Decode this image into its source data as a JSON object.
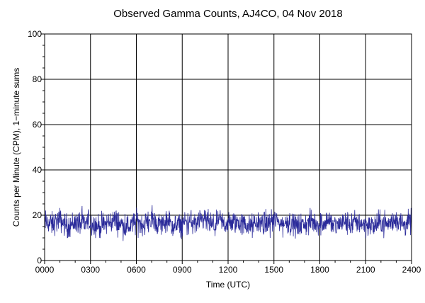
{
  "chart_data": {
    "type": "line",
    "title": "Observed Gamma Counts, AJ4CO, 04 Nov 2018",
    "xlabel": "Time (UTC)",
    "ylabel": "Counts per Minute (CPM), 1−minute sums",
    "x_tick_labels": [
      "0000",
      "0300",
      "0600",
      "0900",
      "1200",
      "1500",
      "1800",
      "2100",
      "2400"
    ],
    "x_ticks_hours": [
      0,
      3,
      6,
      9,
      12,
      15,
      18,
      21,
      24
    ],
    "y_tick_labels": [
      "0",
      "20",
      "40",
      "60",
      "80",
      "100"
    ],
    "y_ticks": [
      0,
      20,
      40,
      60,
      80,
      100
    ],
    "xlim_hours": [
      0,
      24
    ],
    "ylim": [
      0,
      100
    ],
    "grid": true,
    "legend": "none",
    "series": [
      {
        "sampling": "1-minute sums",
        "color": "#2b2b9a",
        "x_hours": [
          0,
          0.5,
          1,
          1.5,
          2,
          2.5,
          3,
          3.5,
          4,
          4.5,
          5,
          5.5,
          6,
          6.5,
          7,
          7.5,
          8,
          8.5,
          9,
          9.5,
          10,
          10.5,
          11,
          11.5,
          12,
          12.5,
          13,
          13.5,
          14,
          14.5,
          15,
          15.5,
          16,
          16.5,
          17,
          17.5,
          18,
          18.5,
          19,
          19.5,
          20,
          20.5,
          21,
          21.5,
          22,
          22.5,
          23,
          23.5,
          24
        ],
        "values": [
          17,
          16,
          18,
          15,
          17,
          16,
          17,
          15,
          16,
          18,
          16,
          15,
          17,
          16,
          18,
          16,
          17,
          15,
          16,
          17,
          16,
          18,
          15,
          17,
          16,
          17,
          16,
          15,
          17,
          16,
          18,
          16,
          17,
          15,
          16,
          17,
          16,
          18,
          15,
          17,
          16,
          17,
          16,
          15,
          17,
          16,
          18,
          16,
          17
        ]
      }
    ]
  }
}
